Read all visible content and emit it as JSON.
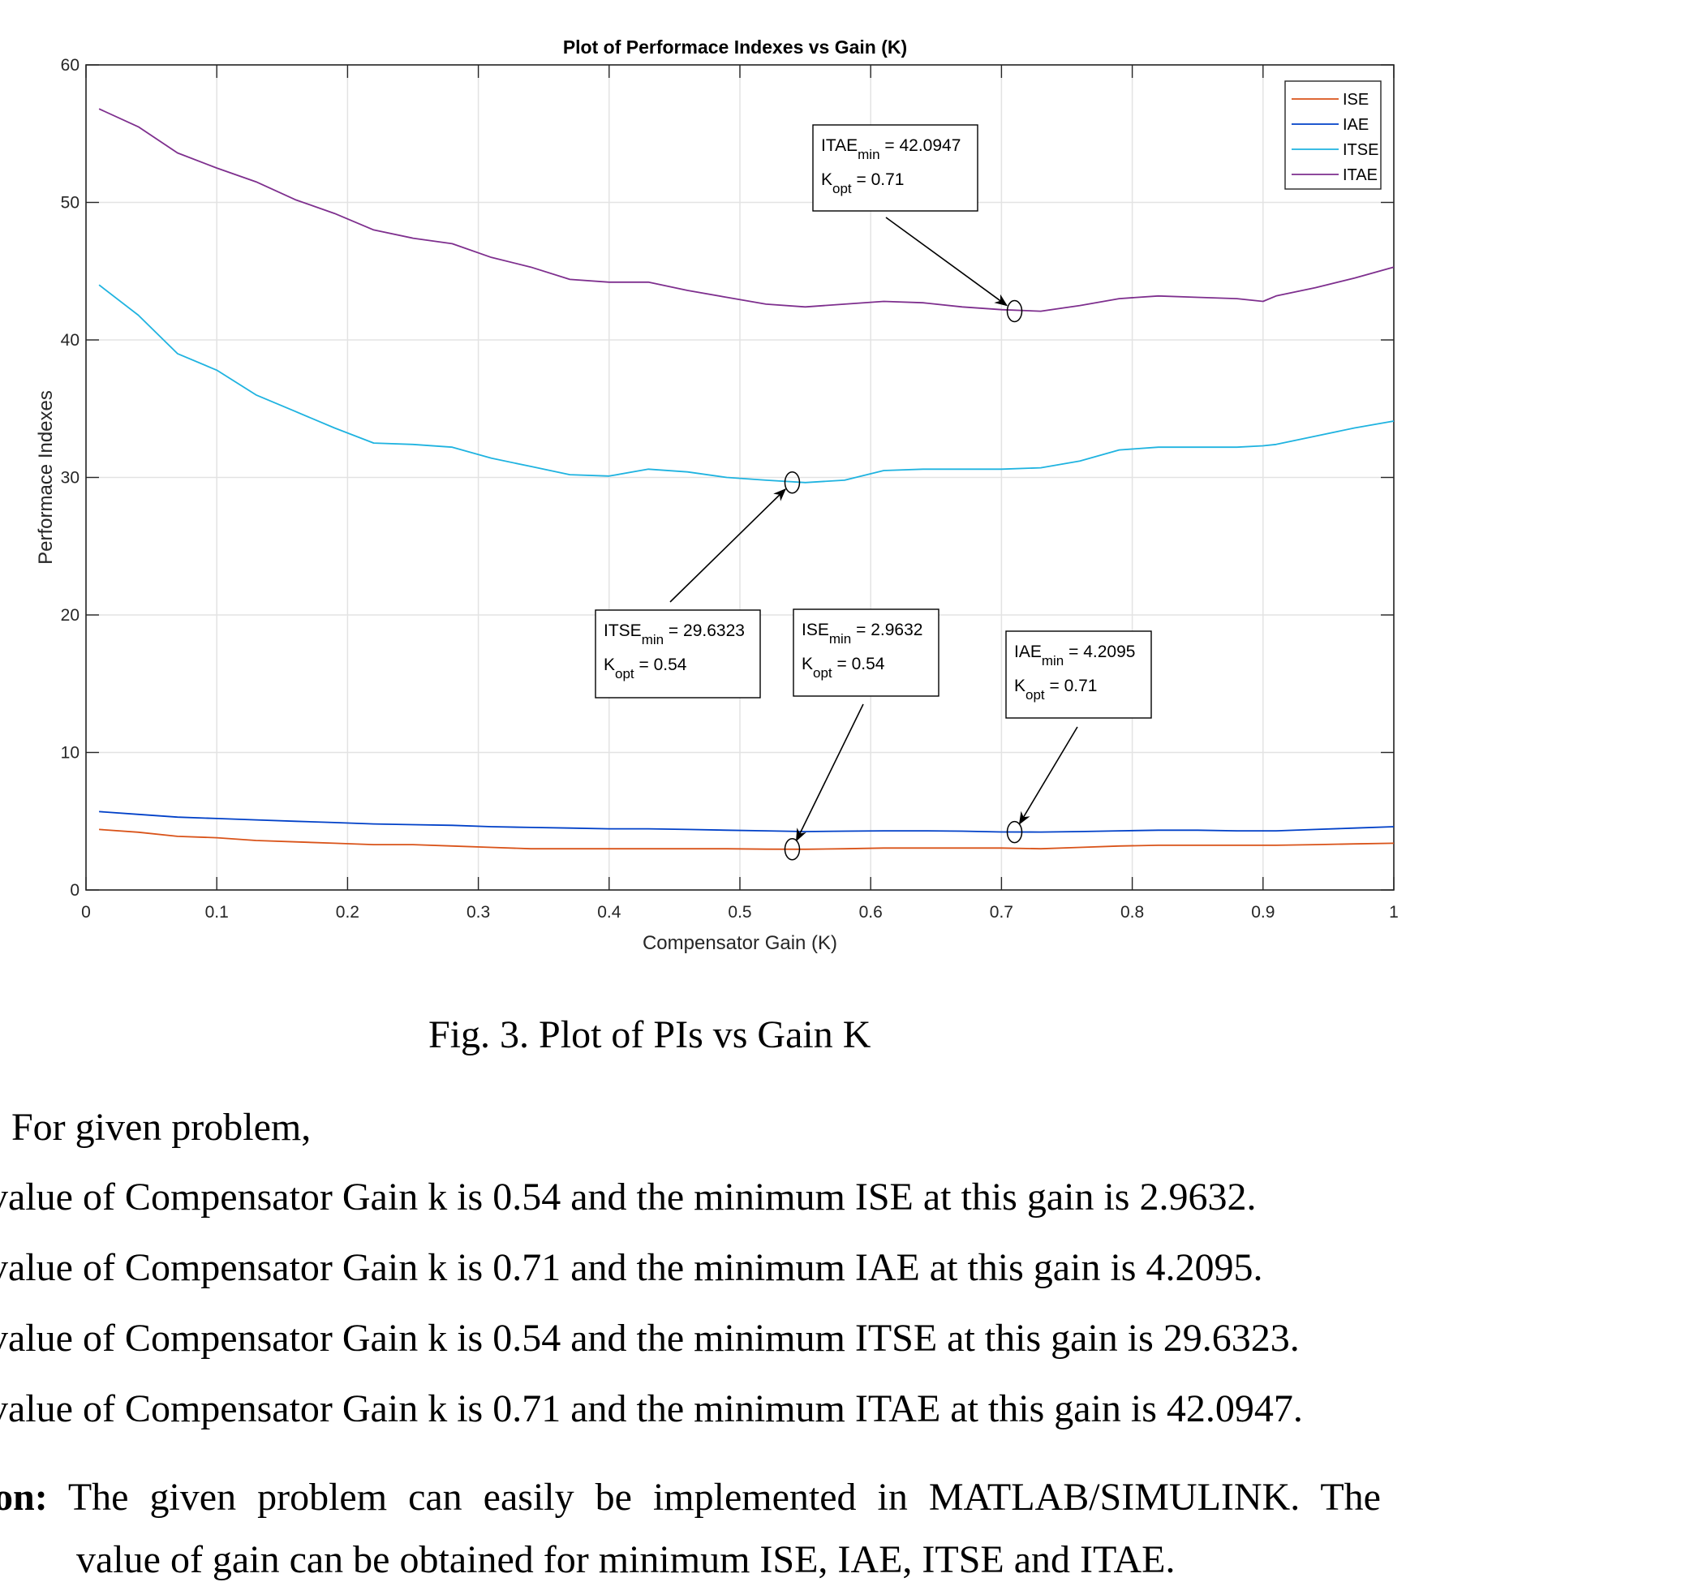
{
  "chart_data": {
    "type": "line",
    "title": "Plot of Performace Indexes vs Gain (K)",
    "xlabel": "Compensator Gain (K)",
    "ylabel": "Performace Indexes",
    "xlim": [
      0,
      1
    ],
    "ylim": [
      0,
      60
    ],
    "xticks": [
      0,
      0.1,
      0.2,
      0.3,
      0.4,
      0.5,
      0.6,
      0.7,
      0.8,
      0.9,
      1
    ],
    "xtick_labels": [
      "0",
      "0.1",
      "0.2",
      "0.3",
      "0.4",
      "0.5",
      "0.6",
      "0.7",
      "0.8",
      "0.9",
      "1"
    ],
    "yticks": [
      0,
      10,
      20,
      30,
      40,
      50,
      60
    ],
    "ytick_labels": [
      "0",
      "10",
      "20",
      "30",
      "40",
      "50",
      "60"
    ],
    "grid": true,
    "legend_position": "top-right",
    "x": [
      0.01,
      0.04,
      0.07,
      0.1,
      0.13,
      0.16,
      0.19,
      0.22,
      0.25,
      0.28,
      0.31,
      0.34,
      0.37,
      0.4,
      0.43,
      0.46,
      0.49,
      0.52,
      0.55,
      0.58,
      0.61,
      0.64,
      0.67,
      0.7,
      0.73,
      0.76,
      0.79,
      0.82,
      0.85,
      0.88,
      0.9,
      0.91,
      0.94,
      0.97,
      1.0
    ],
    "series": [
      {
        "name": "ISE",
        "color": "#D95319",
        "values": [
          4.4,
          4.2,
          3.9,
          3.8,
          3.6,
          3.5,
          3.4,
          3.3,
          3.3,
          3.2,
          3.1,
          3.0,
          3.0,
          3.0,
          3.0,
          3.0,
          3.0,
          2.97,
          2.96,
          3.0,
          3.05,
          3.05,
          3.05,
          3.05,
          3.0,
          3.1,
          3.2,
          3.25,
          3.25,
          3.25,
          3.25,
          3.25,
          3.3,
          3.35,
          3.4
        ]
      },
      {
        "name": "IAE",
        "color": "#0040C8",
        "values": [
          5.7,
          5.5,
          5.3,
          5.2,
          5.1,
          5.0,
          4.9,
          4.8,
          4.75,
          4.7,
          4.6,
          4.55,
          4.5,
          4.45,
          4.45,
          4.4,
          4.35,
          4.3,
          4.25,
          4.28,
          4.3,
          4.3,
          4.28,
          4.22,
          4.21,
          4.25,
          4.3,
          4.35,
          4.35,
          4.3,
          4.3,
          4.3,
          4.4,
          4.5,
          4.6
        ]
      },
      {
        "name": "ITSE",
        "color": "#1FB3E0",
        "values": [
          44.0,
          41.8,
          39.0,
          37.8,
          36.0,
          34.8,
          33.6,
          32.5,
          32.4,
          32.2,
          31.4,
          30.8,
          30.2,
          30.1,
          30.6,
          30.4,
          30.0,
          29.8,
          29.63,
          29.8,
          30.5,
          30.6,
          30.6,
          30.6,
          30.7,
          31.2,
          32.0,
          32.2,
          32.2,
          32.2,
          32.3,
          32.4,
          33.0,
          33.6,
          34.1
        ]
      },
      {
        "name": "ITAE",
        "color": "#7E2F8E",
        "values": [
          56.8,
          55.5,
          53.6,
          52.5,
          51.5,
          50.2,
          49.2,
          48.0,
          47.4,
          47.0,
          46.0,
          45.3,
          44.4,
          44.2,
          44.2,
          43.6,
          43.1,
          42.6,
          42.4,
          42.6,
          42.8,
          42.7,
          42.4,
          42.2,
          42.09,
          42.5,
          43.0,
          43.2,
          43.1,
          43.0,
          42.8,
          43.2,
          43.8,
          44.5,
          45.3
        ]
      }
    ],
    "annotations": [
      {
        "name": "ITAE",
        "line1_prefix": "ITAE",
        "line1_sub": "min",
        "line1_value": " = 42.0947",
        "line2_prefix": "K",
        "line2_sub": "opt",
        "line2_value": " = 0.71",
        "x": 0.71,
        "y": 42.0947
      },
      {
        "name": "ITSE",
        "line1_prefix": "ITSE",
        "line1_sub": "min",
        "line1_value": " = 29.6323",
        "line2_prefix": "K",
        "line2_sub": "opt",
        "line2_value": " = 0.54",
        "x": 0.54,
        "y": 29.6323
      },
      {
        "name": "ISE",
        "line1_prefix": "ISE",
        "line1_sub": "min",
        "line1_value": " = 2.9632",
        "line2_prefix": "K",
        "line2_sub": "opt",
        "line2_value": " = 0.54",
        "x": 0.54,
        "y": 2.9632
      },
      {
        "name": "IAE",
        "line1_prefix": "IAE",
        "line1_sub": "min",
        "line1_value": " = 4.2095",
        "line2_prefix": "K",
        "line2_sub": "opt",
        "line2_value": " = 0.71",
        "x": 0.71,
        "y": 4.2095
      }
    ]
  },
  "document": {
    "caption": "Fig. 3. Plot of PIs vs Gain K",
    "result_bold": ":",
    "result_text": " For given problem,",
    "items": [
      "value of Compensator Gain k is 0.54 and the minimum ISE at this gain is 2.9632.",
      "value of Compensator Gain k is 0.71 and the minimum IAE at this gain is 4.2095.",
      "value of Compensator Gain k is 0.54 and the minimum ITSE at this gain is 29.6323.",
      "value of Compensator Gain k is 0.71 and the minimum ITAE at this gain is 42.0947."
    ],
    "conclusion_bold": "sion:",
    "conclusion_text": " The given problem can easily be implemented in MATLAB/SIMULINK. The",
    "last_line": "value of gain can be obtained for minimum ISE, IAE, ITSE and ITAE."
  }
}
